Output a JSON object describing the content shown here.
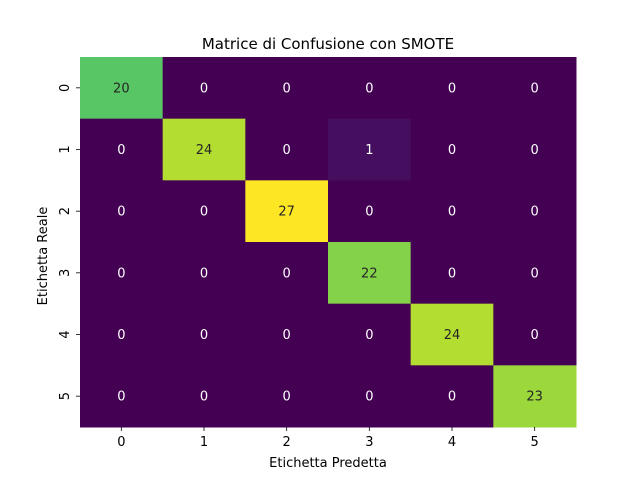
{
  "chart_data": {
    "type": "heatmap",
    "title": "Matrice di Confusione con SMOTE",
    "xlabel": "Etichetta Predetta",
    "ylabel": "Etichetta Reale",
    "x_ticks": [
      "0",
      "1",
      "2",
      "3",
      "4",
      "5"
    ],
    "y_ticks": [
      "0",
      "1",
      "2",
      "3",
      "4",
      "5"
    ],
    "values": [
      [
        20,
        0,
        0,
        0,
        0,
        0
      ],
      [
        0,
        24,
        0,
        1,
        0,
        0
      ],
      [
        0,
        0,
        27,
        0,
        0,
        0
      ],
      [
        0,
        0,
        0,
        22,
        0,
        0
      ],
      [
        0,
        0,
        0,
        0,
        24,
        0
      ],
      [
        0,
        0,
        0,
        0,
        0,
        23
      ]
    ],
    "vmin": 0,
    "vmax": 27,
    "colormap": "viridis",
    "colorbar": false,
    "annotations": true
  }
}
